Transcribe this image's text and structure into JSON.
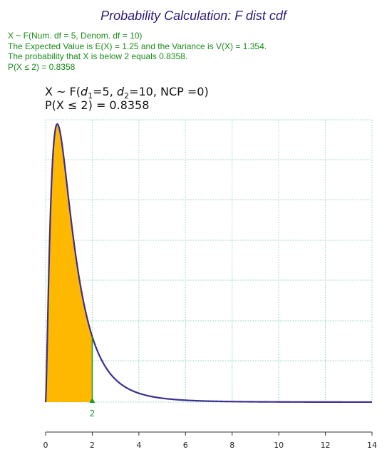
{
  "page": {
    "title": "Probability Calculation: F dist cdf",
    "summary_lines": [
      "X ~ F(Num. df = 5, Denom. df = 10)",
      "The Expected Value is E(X) = 1.25 and the Variance is V(X) = 1.354.",
      "The probability that X is below 2 equals 0.8358.",
      "P(X ≤ 2) = 0.8358"
    ]
  },
  "chart_data": {
    "type": "area",
    "title_prefix": "X ~ F(",
    "title_d1_sym": "d",
    "title_d1_sub": "1",
    "title_d1_val": "=5, ",
    "title_d2_sym": "d",
    "title_d2_sub": "2",
    "title_d2_val": "=10, NCP =0)",
    "subtitle": "P(X ≤ 2) = 0.8358",
    "distribution": "F",
    "df1": 5,
    "df2": 10,
    "ncp": 0,
    "cutoff": 2,
    "cutoff_label": "2",
    "probability": 0.8358,
    "xlim": [
      0,
      14
    ],
    "x_ticks": [
      0,
      2,
      4,
      6,
      8,
      10,
      12,
      14
    ],
    "x_tick_labels": [
      "0",
      "2",
      "4",
      "6",
      "8",
      "10",
      "12",
      "14"
    ],
    "grid": true,
    "colors": {
      "curve": "#3b2f8f",
      "fill": "#ffb800",
      "grid": "#8fd3b8",
      "cutoff": "#1a9a2a",
      "axis": "#333333"
    }
  }
}
